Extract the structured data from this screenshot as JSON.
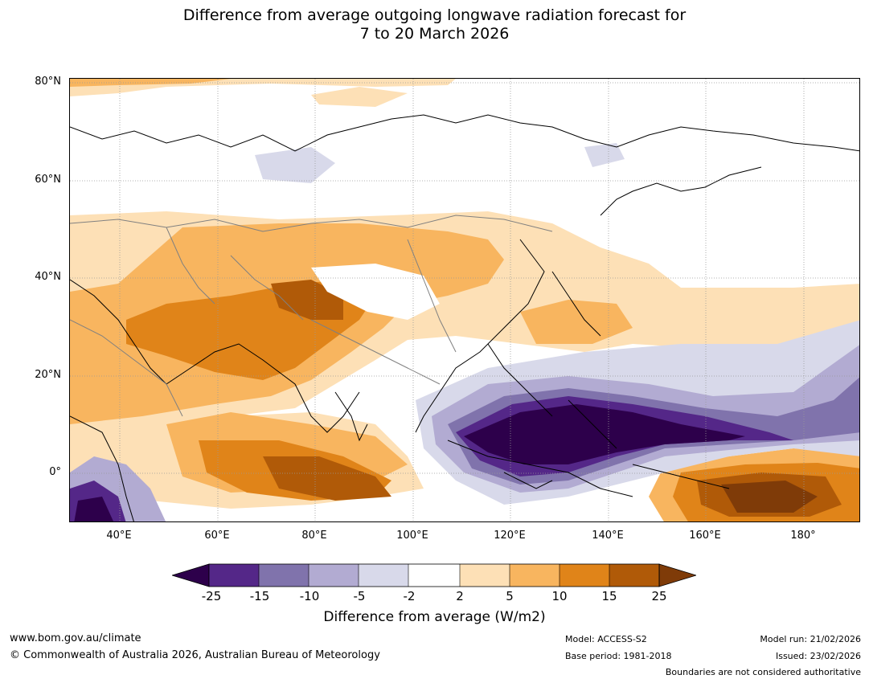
{
  "title": {
    "line1": "Difference from average outgoing longwave radiation forecast for",
    "line2": "7 to 20 March 2026"
  },
  "map": {
    "lat_labels": [
      "80°N",
      "60°N",
      "40°N",
      "20°N",
      "0°"
    ],
    "lon_labels": [
      "40°E",
      "60°E",
      "80°E",
      "100°E",
      "120°E",
      "140°E",
      "160°E",
      "180°"
    ],
    "colors": {
      "ocean_land_neutral": "#ffffff",
      "pos_2_5": "#fde0b6",
      "pos_5_10": "#f8b55f",
      "pos_10_15": "#e08419",
      "pos_15_25": "#b05a08",
      "pos_over_25": "#7f3b08",
      "neg_2_5": "#d8d9ea",
      "neg_5_10": "#b2abd2",
      "neg_10_15": "#8073ac",
      "neg_15_25": "#542788",
      "neg_under_25": "#2d004b",
      "coastline": "#000000",
      "borders": "#808080",
      "grid": "#999999"
    }
  },
  "colorbar": {
    "ticks": [
      "-25",
      "-15",
      "-10",
      "-5",
      "-2",
      "2",
      "5",
      "10",
      "15",
      "25"
    ],
    "colors": [
      "#2d004b",
      "#542788",
      "#8073ac",
      "#b2abd2",
      "#d8d9ea",
      "#ffffff",
      "#fde0b6",
      "#f8b55f",
      "#e08419",
      "#b05a08",
      "#7f3b08"
    ],
    "label": "Difference from average (W/m2)"
  },
  "footer": {
    "website": "www.bom.gov.au/climate",
    "copyright": "© Commonwealth of Australia 2026, Australian Bureau of Meteorology",
    "model": "Model: ACCESS-S2",
    "base_period": "Base period: 1981-2018",
    "model_run": "Model run: 21/02/2026",
    "issued": "Issued: 23/02/2026",
    "disclaimer": "Boundaries are not considered authoritative"
  }
}
